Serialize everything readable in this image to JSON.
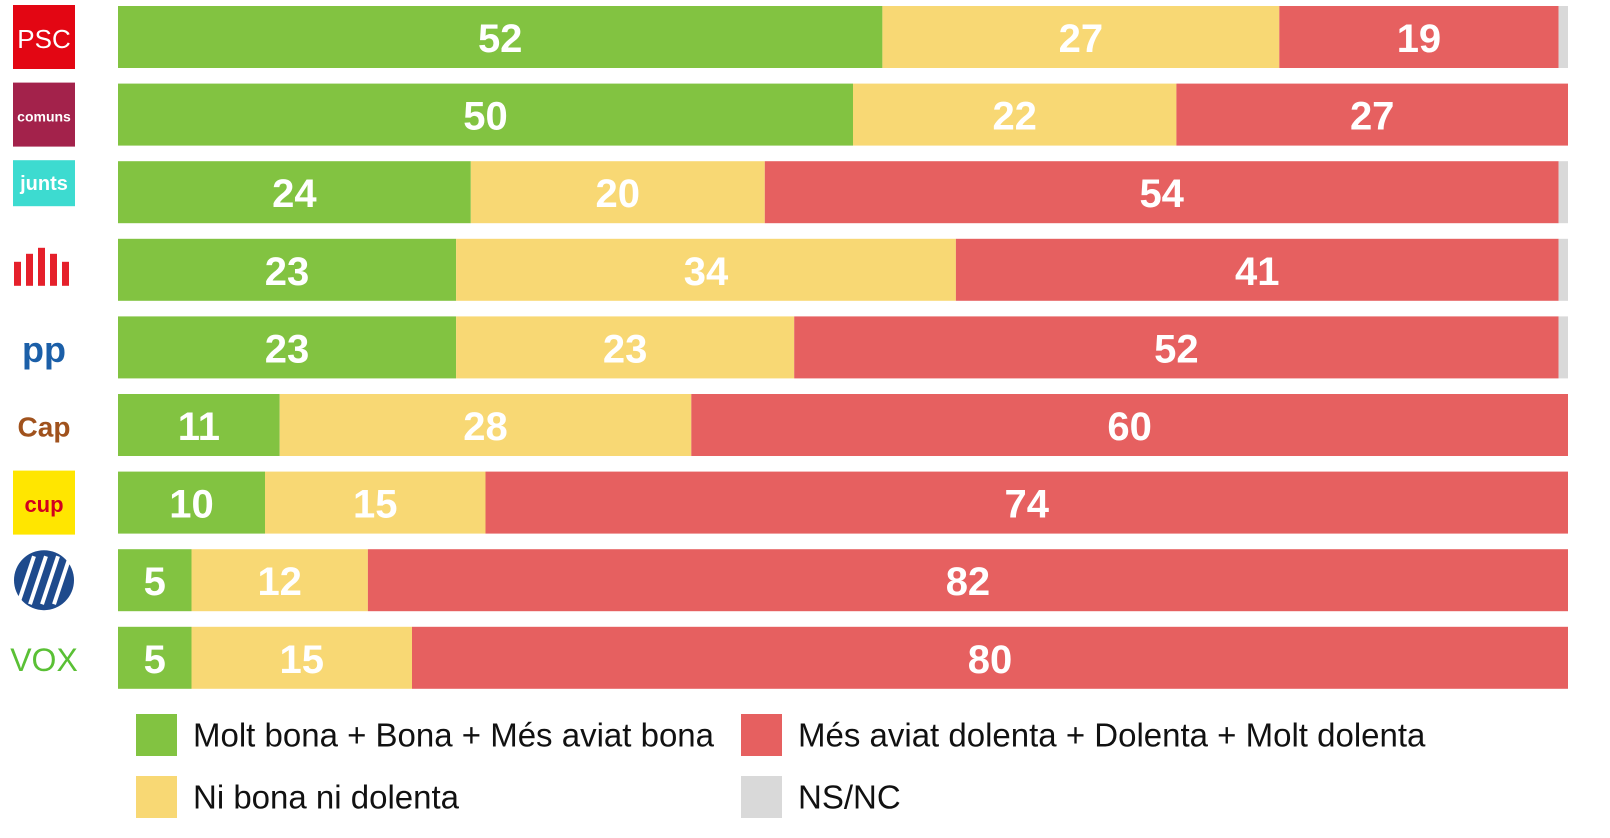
{
  "chart_data": {
    "type": "stacked-bar-horizontal",
    "categories": [
      "PSC",
      "comuns",
      "junts",
      null,
      "pp",
      "Cap",
      "cup",
      null,
      "VOX"
    ],
    "series": [
      {
        "name": "Molt bona + Bona + Més aviat bona",
        "color": "#82c341",
        "values": [
          52,
          50,
          24,
          23,
          23,
          11,
          10,
          5,
          5
        ]
      },
      {
        "name": "Ni bona ni dolenta",
        "color": "#f8d874",
        "values": [
          27,
          22,
          20,
          34,
          23,
          28,
          15,
          12,
          15
        ]
      },
      {
        "name": "Més aviat dolenta + Dolenta + Molt dolenta",
        "color": "#e66060",
        "values": [
          19,
          27,
          54,
          41,
          52,
          60,
          74,
          82,
          80
        ]
      },
      {
        "name": "NS/NC",
        "color": "#d9d9d9",
        "values": [
          2,
          1,
          2,
          2,
          2,
          1,
          1,
          1,
          0
        ]
      }
    ],
    "legend": "bottom"
  }
}
